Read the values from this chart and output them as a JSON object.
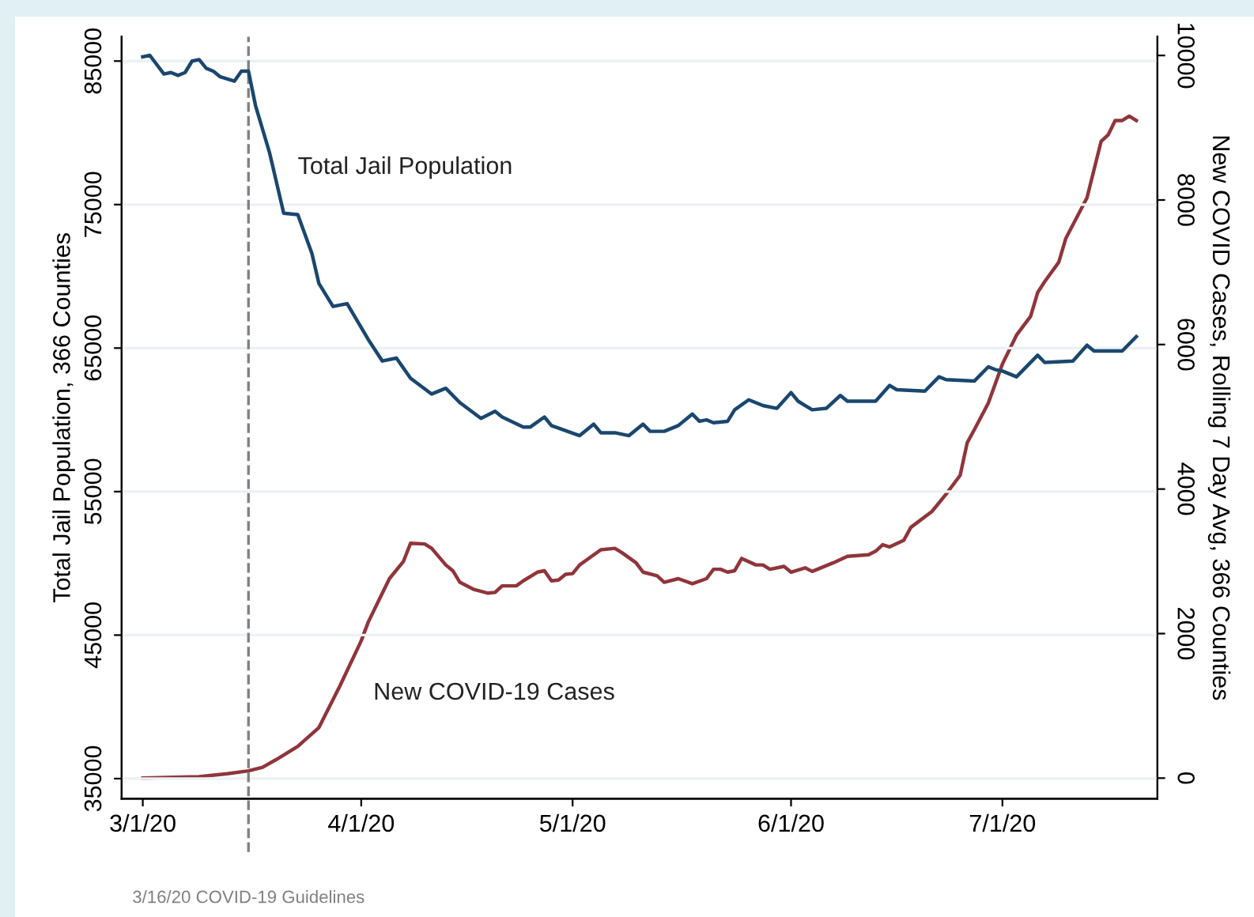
{
  "chart_data": {
    "type": "line",
    "series": [
      {
        "name": "Total Jail Population",
        "color": "#1a476f",
        "axis": "y",
        "x": [
          "2020-03-01",
          "2020-03-02",
          "2020-03-04",
          "2020-03-05",
          "2020-03-06",
          "2020-03-07",
          "2020-03-08",
          "2020-03-09",
          "2020-03-10",
          "2020-03-11",
          "2020-03-12",
          "2020-03-14",
          "2020-03-15",
          "2020-03-16",
          "2020-03-17",
          "2020-03-19",
          "2020-03-21",
          "2020-03-23",
          "2020-03-25",
          "2020-03-26",
          "2020-03-28",
          "2020-03-30",
          "2020-04-02",
          "2020-04-04",
          "2020-04-06",
          "2020-04-08",
          "2020-04-11",
          "2020-04-13",
          "2020-04-15",
          "2020-04-18",
          "2020-04-20",
          "2020-04-21",
          "2020-04-24",
          "2020-04-25",
          "2020-04-27",
          "2020-04-28",
          "2020-05-02",
          "2020-05-04",
          "2020-05-05",
          "2020-05-07",
          "2020-05-09",
          "2020-05-11",
          "2020-05-12",
          "2020-05-14",
          "2020-05-16",
          "2020-05-18",
          "2020-05-19",
          "2020-05-20",
          "2020-05-21",
          "2020-05-23",
          "2020-05-24",
          "2020-05-26",
          "2020-05-28",
          "2020-05-30",
          "2020-06-01",
          "2020-06-02",
          "2020-06-04",
          "2020-06-06",
          "2020-06-08",
          "2020-06-09",
          "2020-06-11",
          "2020-06-13",
          "2020-06-15",
          "2020-06-16",
          "2020-06-20",
          "2020-06-22",
          "2020-06-23",
          "2020-06-27",
          "2020-06-29",
          "2020-06-30",
          "2020-07-01",
          "2020-07-03",
          "2020-07-06",
          "2020-07-07",
          "2020-07-11",
          "2020-07-13",
          "2020-07-14",
          "2020-07-18",
          "2020-07-20"
        ],
        "values": [
          85300,
          85400,
          84100,
          84200,
          84000,
          84200,
          85000,
          85100,
          84500,
          84300,
          83900,
          83600,
          84300,
          84300,
          81900,
          78600,
          74400,
          74300,
          71600,
          69500,
          67900,
          68100,
          65600,
          64100,
          64300,
          62900,
          61800,
          62200,
          61200,
          60100,
          60600,
          60200,
          59500,
          59500,
          60200,
          59600,
          58900,
          59700,
          59100,
          59100,
          58900,
          59700,
          59200,
          59200,
          59600,
          60400,
          59900,
          60000,
          59800,
          59900,
          60700,
          61400,
          61000,
          60800,
          61900,
          61300,
          60700,
          60800,
          61700,
          61300,
          61300,
          61300,
          62400,
          62100,
          62000,
          63000,
          62800,
          62700,
          63700,
          63500,
          63400,
          63000,
          64500,
          64000,
          64100,
          65200,
          64800,
          64800,
          65800
        ]
      },
      {
        "name": "New COVID-19 Cases",
        "color": "#90353b",
        "axis": "y2",
        "x": [
          "2020-03-01",
          "2020-03-09",
          "2020-03-13",
          "2020-03-16",
          "2020-03-18",
          "2020-03-20",
          "2020-03-23",
          "2020-03-26",
          "2020-03-29",
          "2020-04-01",
          "2020-04-02",
          "2020-04-05",
          "2020-04-07",
          "2020-04-08",
          "2020-04-10",
          "2020-04-11",
          "2020-04-13",
          "2020-04-14",
          "2020-04-15",
          "2020-04-17",
          "2020-04-19",
          "2020-04-20",
          "2020-04-21",
          "2020-04-23",
          "2020-04-24",
          "2020-04-26",
          "2020-04-27",
          "2020-04-28",
          "2020-04-29",
          "2020-04-30",
          "2020-05-01",
          "2020-05-02",
          "2020-05-03",
          "2020-05-05",
          "2020-05-07",
          "2020-05-08",
          "2020-05-10",
          "2020-05-11",
          "2020-05-13",
          "2020-05-14",
          "2020-05-16",
          "2020-05-18",
          "2020-05-20",
          "2020-05-21",
          "2020-05-22",
          "2020-05-23",
          "2020-05-24",
          "2020-05-25",
          "2020-05-27",
          "2020-05-28",
          "2020-05-29",
          "2020-05-31",
          "2020-06-01",
          "2020-06-03",
          "2020-06-04",
          "2020-06-07",
          "2020-06-09",
          "2020-06-12",
          "2020-06-13",
          "2020-06-14",
          "2020-06-15",
          "2020-06-17",
          "2020-06-18",
          "2020-06-21",
          "2020-06-23",
          "2020-06-25",
          "2020-06-26",
          "2020-06-27",
          "2020-06-29",
          "2020-07-01",
          "2020-07-03",
          "2020-07-05",
          "2020-07-06",
          "2020-07-07",
          "2020-07-09",
          "2020-07-10",
          "2020-07-13",
          "2020-07-15",
          "2020-07-16",
          "2020-07-17",
          "2020-07-18",
          "2020-07-19",
          "2020-07-20"
        ],
        "values": [
          0,
          20,
          60,
          100,
          150,
          260,
          440,
          700,
          1280,
          1900,
          2160,
          2760,
          3000,
          3250,
          3240,
          3180,
          2950,
          2870,
          2710,
          2610,
          2560,
          2570,
          2660,
          2660,
          2730,
          2850,
          2870,
          2730,
          2740,
          2820,
          2830,
          2950,
          3020,
          3160,
          3180,
          3120,
          2980,
          2850,
          2800,
          2710,
          2760,
          2690,
          2760,
          2890,
          2890,
          2850,
          2870,
          3040,
          2950,
          2950,
          2890,
          2930,
          2850,
          2910,
          2860,
          2980,
          3070,
          3090,
          3140,
          3230,
          3200,
          3290,
          3470,
          3690,
          3930,
          4190,
          4640,
          4820,
          5190,
          5730,
          6130,
          6390,
          6720,
          6870,
          7140,
          7470,
          8030,
          8810,
          8900,
          9100,
          9100,
          9160,
          9100
        ]
      }
    ],
    "xlim": [
      "2020-02-27",
      "2020-07-23"
    ],
    "xticks": [
      {
        "value": "2020-03-01",
        "label": "3/1/20"
      },
      {
        "value": "2020-04-01",
        "label": "4/1/20"
      },
      {
        "value": "2020-05-01",
        "label": "5/1/20"
      },
      {
        "value": "2020-06-01",
        "label": "6/1/20"
      },
      {
        "value": "2020-07-01",
        "label": "7/1/20"
      }
    ],
    "ylim": [
      33600,
      86700
    ],
    "yticks": [
      35000,
      45000,
      55000,
      65000,
      75000,
      85000
    ],
    "y2lim": [
      -285,
      10260
    ],
    "y2ticks": [
      0,
      2000,
      4000,
      6000,
      8000,
      10000
    ],
    "ylabel": "Total Jail Population, 366 Counties",
    "y2label": "New COVID Cases, Rolling 7 Day Avg, 366 Counties",
    "ref_lines": [
      {
        "axis": "x",
        "value": "2020-03-16",
        "label": "3/16/20 COVID-19 Guidelines",
        "color": "#808080",
        "line_style": "dashed"
      }
    ],
    "grid": "y",
    "legend": false,
    "marker": "none",
    "line_style": "solid"
  }
}
